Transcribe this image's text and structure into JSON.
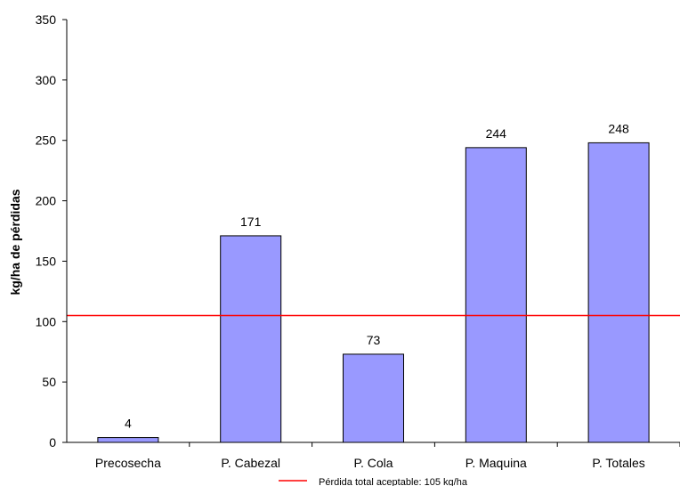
{
  "chart_data": {
    "type": "bar",
    "title": "",
    "xlabel": "",
    "ylabel": "kg/ha de pérdidas",
    "categories": [
      "Precosecha",
      "P. Cabezal",
      "P. Cola",
      "P. Maquina",
      "P. Totales"
    ],
    "values": [
      4,
      171,
      73,
      244,
      248
    ],
    "data_labels": [
      "4",
      "171",
      "73",
      "244",
      "248"
    ],
    "ylim": [
      0,
      350
    ],
    "yticks": [
      0,
      50,
      100,
      150,
      200,
      250,
      300,
      350
    ],
    "grid": false,
    "bar_color": "#9999ff",
    "reference_line": {
      "value": 105,
      "color": "#ff0000",
      "label": "Pérdida total aceptable: 105 kg/ha"
    },
    "legend_position": "bottom"
  }
}
